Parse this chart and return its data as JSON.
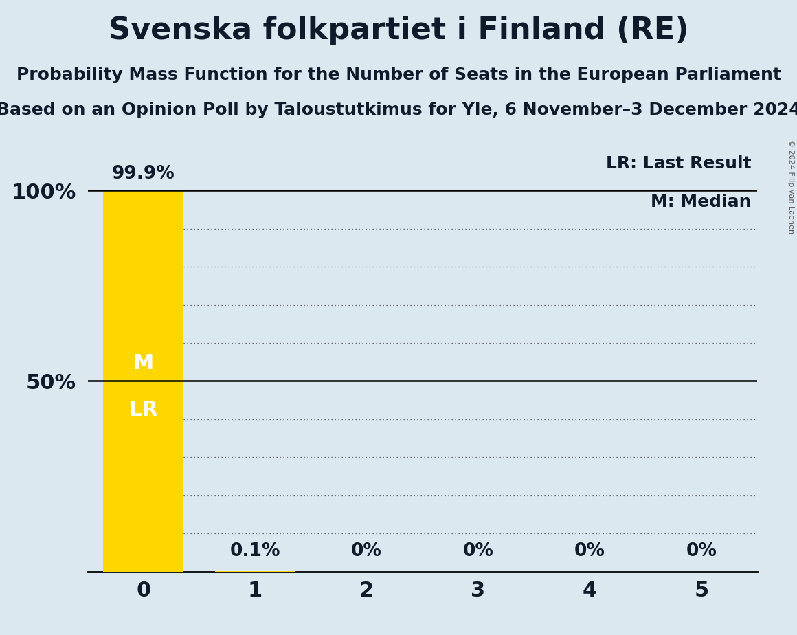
{
  "title": "Svenska folkpartiet i Finland (RE)",
  "subtitle1": "Probability Mass Function for the Number of Seats in the European Parliament",
  "subtitle2": "Based on an Opinion Poll by Taloustutkimus for Yle, 6 November–3 December 2024",
  "copyright": "© 2024 Filip van Laenen",
  "categories": [
    0,
    1,
    2,
    3,
    4,
    5
  ],
  "values": [
    99.9,
    0.1,
    0.0,
    0.0,
    0.0,
    0.0
  ],
  "bar_color": "#FFD700",
  "background_color": "#dce8f0",
  "title_color": "#0d1b2a",
  "median_seat": 0,
  "last_result_seat": 0,
  "ylim": [
    0,
    100
  ],
  "value_labels": [
    "99.9%",
    "0.1%",
    "0%",
    "0%",
    "0%",
    "0%"
  ],
  "grid_dotted_levels": [
    10,
    20,
    30,
    40,
    60,
    70,
    80,
    90
  ],
  "solid_line_levels": [
    50,
    100
  ],
  "legend_lr": "LR: Last Result",
  "legend_m": "M: Median",
  "title_fontsize": 32,
  "subtitle_fontsize": 18,
  "axis_label_fontsize": 22,
  "value_label_fontsize": 19,
  "bar_label_fontsize": 22,
  "legend_fontsize": 18,
  "copyright_fontsize": 8
}
